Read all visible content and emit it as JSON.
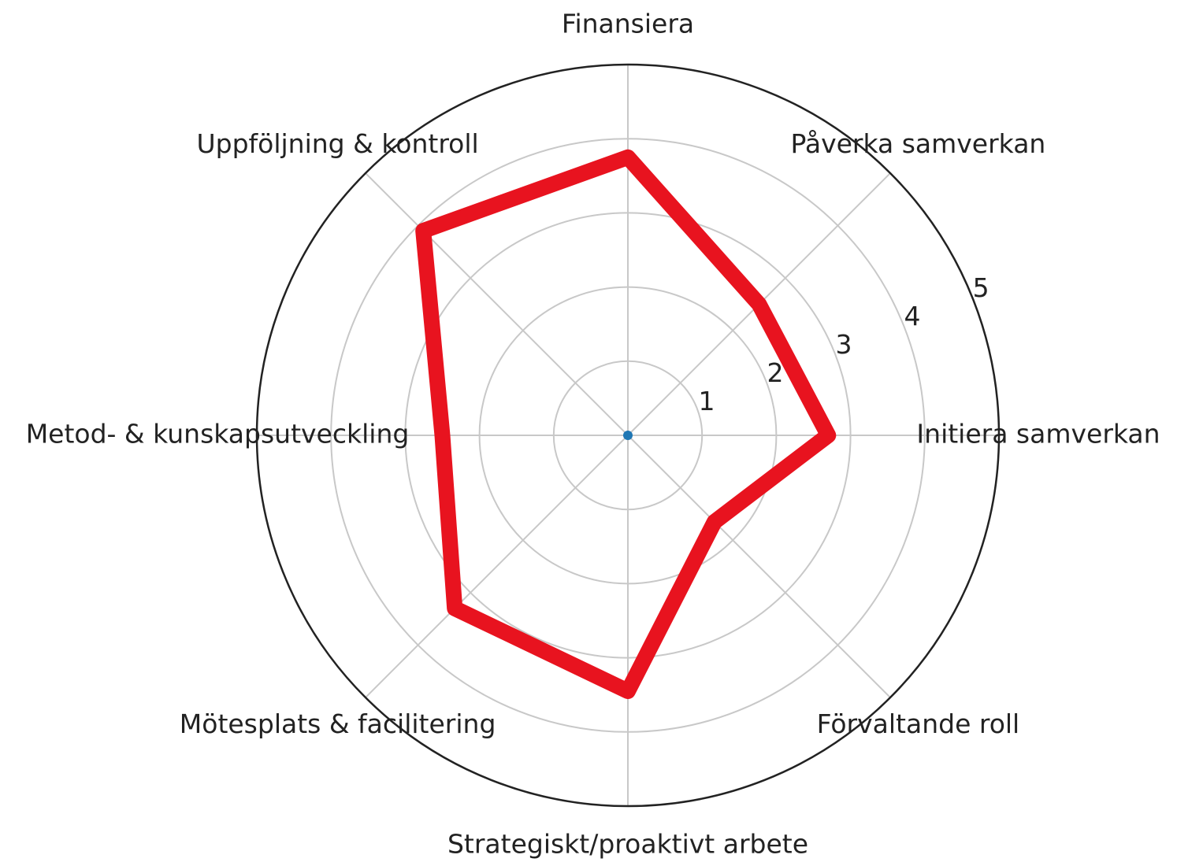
{
  "chart_data": {
    "type": "radar",
    "categories": [
      "Finansiera",
      "Påverka samverkan",
      "Initiera samverkan",
      "Förvaltande roll",
      "Strategiskt/proaktivt arbete",
      "Mötesplats & facilitering",
      "Metod- & kunskapsutveckling",
      "Uppföljning & kontroll"
    ],
    "values": [
      3.75,
      2.5,
      2.7,
      1.65,
      3.45,
      3.3,
      2.5,
      3.9
    ],
    "color": "#e8131f",
    "rlim": [
      0,
      5
    ],
    "rticks": [
      1,
      2,
      3,
      4,
      5
    ],
    "grid": true
  }
}
